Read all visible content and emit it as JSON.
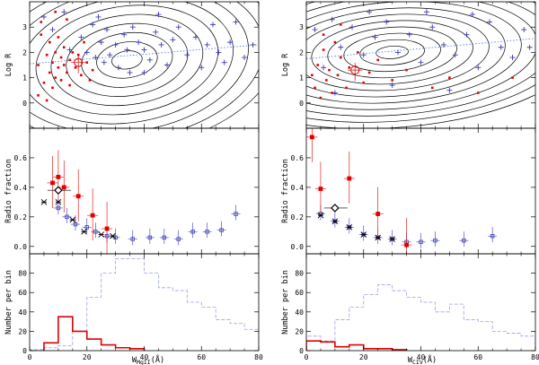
{
  "figure": {
    "colors": {
      "radio": "#e00000",
      "nonradio": "#3a3ab8",
      "cross": "#000000",
      "contour": "#000000",
      "fit": "#4a6fd8",
      "hist_all": "#9aa0e8",
      "hist_radio": "#e00000"
    },
    "xtick_labels": [
      "0",
      "20",
      "40",
      "60",
      "80"
    ],
    "xlabel_left_main": "W",
    "xlabel_left_sub": "MgII",
    "xlabel_left_tail": "(Å)",
    "xlabel_right_main": "W",
    "xlabel_right_sub": "CIV",
    "xlabel_right_tail": "(Å)"
  },
  "chart_data": [
    {
      "id": "left-top",
      "type": "scatter",
      "title": "",
      "xlabel": "W MgII (Å)",
      "ylabel": "Log R",
      "xlim": [
        0,
        80
      ],
      "ylim": [
        -1,
        4
      ],
      "ytick_labels": [
        "0",
        "1",
        "2",
        "3"
      ],
      "yticks": [
        0,
        1,
        2,
        3
      ],
      "series": [
        {
          "name": "non-radio (crosses)",
          "points": [
            [
              5,
              3.4
            ],
            [
              8,
              2.9
            ],
            [
              12,
              3.6
            ],
            [
              14,
              2.1
            ],
            [
              18,
              2.6
            ],
            [
              20,
              2.0
            ],
            [
              22,
              3.1
            ],
            [
              23,
              1.8
            ],
            [
              25,
              2.4
            ],
            [
              26,
              1.6
            ],
            [
              27,
              2.9
            ],
            [
              28,
              1.9
            ],
            [
              30,
              2.3
            ],
            [
              31,
              1.4
            ],
            [
              33,
              2.7
            ],
            [
              34,
              2.1
            ],
            [
              35,
              1.2
            ],
            [
              36,
              3.0
            ],
            [
              38,
              2.4
            ],
            [
              40,
              2.1
            ],
            [
              42,
              1.7
            ],
            [
              44,
              2.8
            ],
            [
              46,
              2.3
            ],
            [
              48,
              1.5
            ],
            [
              50,
              2.5
            ],
            [
              52,
              3.0
            ],
            [
              55,
              1.9
            ],
            [
              58,
              2.6
            ],
            [
              60,
              1.4
            ],
            [
              62,
              2.3
            ],
            [
              64,
              3.1
            ],
            [
              66,
              2.0
            ],
            [
              68,
              1.6
            ],
            [
              70,
              2.4
            ],
            [
              72,
              3.2
            ],
            [
              75,
              1.8
            ],
            [
              78,
              2.3
            ],
            [
              40,
              1.2
            ],
            [
              24,
              3.4
            ],
            [
              45,
              3.5
            ]
          ]
        },
        {
          "name": "radio (dots)",
          "points": [
            [
              3,
              1.5
            ],
            [
              4,
              3.2
            ],
            [
              5,
              0.8
            ],
            [
              6,
              1.9
            ],
            [
              6,
              0.1
            ],
            [
              7,
              2.4
            ],
            [
              7,
              1.2
            ],
            [
              8,
              1.6
            ],
            [
              8,
              0.6
            ],
            [
              9,
              2.0
            ],
            [
              9,
              1.0
            ],
            [
              10,
              1.4
            ],
            [
              10,
              2.6
            ],
            [
              11,
              1.8
            ],
            [
              11,
              0.9
            ],
            [
              12,
              1.5
            ],
            [
              12,
              2.2
            ],
            [
              13,
              1.2
            ],
            [
              14,
              1.7
            ],
            [
              14,
              0.7
            ],
            [
              15,
              2.0
            ],
            [
              16,
              1.4
            ],
            [
              17,
              1.9
            ],
            [
              18,
              1.1
            ],
            [
              19,
              2.4
            ],
            [
              20,
              1.6
            ],
            [
              21,
              0.9
            ],
            [
              22,
              1.3
            ],
            [
              4,
              2.7
            ],
            [
              3,
              0.3
            ],
            [
              13,
              3.3
            ],
            [
              9,
              3.6
            ]
          ]
        },
        {
          "name": "median",
          "points": [
            [
              17,
              1.6
            ]
          ]
        }
      ],
      "fit_line": [
        [
          0,
          1.55
        ],
        [
          80,
          2.3
        ]
      ]
    },
    {
      "id": "right-top",
      "type": "scatter",
      "title": "",
      "xlabel": "W CIV (Å)",
      "ylabel": "Log R",
      "xlim": [
        0,
        80
      ],
      "ylim": [
        -1,
        4
      ],
      "ytick_labels": [
        "0",
        "1",
        "2",
        "3"
      ],
      "yticks": [
        0,
        1,
        2,
        3
      ],
      "series": [
        {
          "name": "non-radio (crosses)",
          "points": [
            [
              3,
              2.9
            ],
            [
              6,
              1.4
            ],
            [
              9,
              3.3
            ],
            [
              12,
              2.2
            ],
            [
              16,
              3.0
            ],
            [
              20,
              1.9
            ],
            [
              24,
              2.6
            ],
            [
              28,
              3.2
            ],
            [
              32,
              2.0
            ],
            [
              36,
              2.7
            ],
            [
              40,
              1.6
            ],
            [
              44,
              3.0
            ],
            [
              48,
              2.3
            ],
            [
              52,
              1.9
            ],
            [
              56,
              2.7
            ],
            [
              60,
              1.4
            ],
            [
              64,
              3.2
            ],
            [
              68,
              2.2
            ],
            [
              72,
              1.8
            ],
            [
              76,
              2.9
            ],
            [
              10,
              0.4
            ],
            [
              30,
              0.7
            ],
            [
              50,
              0.5
            ],
            [
              22,
              3.6
            ],
            [
              42,
              3.6
            ],
            [
              58,
              3.5
            ],
            [
              78,
              2.2
            ]
          ]
        },
        {
          "name": "radio (dots)",
          "points": [
            [
              2,
              1.1
            ],
            [
              3,
              0.6
            ],
            [
              4,
              1.5
            ],
            [
              5,
              0.2
            ],
            [
              6,
              2.1
            ],
            [
              7,
              0.9
            ],
            [
              8,
              1.3
            ],
            [
              9,
              0.4
            ],
            [
              10,
              2.4
            ],
            [
              11,
              1.1
            ],
            [
              12,
              1.8
            ],
            [
              14,
              0.6
            ],
            [
              15,
              1.4
            ],
            [
              18,
              2.0
            ],
            [
              20,
              0.8
            ],
            [
              22,
              1.2
            ],
            [
              25,
              1.7
            ],
            [
              30,
              0.9
            ],
            [
              35,
              1.3
            ],
            [
              44,
              0.6
            ],
            [
              50,
              1.0
            ],
            [
              60,
              0.4
            ],
            [
              72,
              1.0
            ],
            [
              12,
              3.1
            ],
            [
              6,
              2.7
            ]
          ]
        },
        {
          "name": "median",
          "points": [
            [
              17,
              1.3
            ]
          ]
        }
      ],
      "fit_line": [
        [
          0,
          1.75
        ],
        [
          80,
          2.55
        ]
      ]
    },
    {
      "id": "left-mid",
      "type": "scatter",
      "title": "",
      "xlabel": "W MgII (Å)",
      "ylabel": "Radio fraction",
      "xlim": [
        0,
        80
      ],
      "ylim": [
        -0.05,
        0.8
      ],
      "ytick_labels": [
        "0.0",
        "0.2",
        "0.4",
        "0.6"
      ],
      "yticks": [
        0,
        0.2,
        0.4,
        0.6
      ],
      "series": [
        {
          "name": "radio fraction (red squares)",
          "points": [
            [
              8,
              0.43
            ],
            [
              10,
              0.47
            ],
            [
              12,
              0.4
            ],
            [
              17,
              0.34
            ],
            [
              22,
              0.21
            ],
            [
              27,
              0.12
            ]
          ]
        },
        {
          "name": "blue squares",
          "points": [
            [
              10,
              0.26
            ],
            [
              13,
              0.2
            ],
            [
              16,
              0.15
            ],
            [
              20,
              0.13
            ],
            [
              23,
              0.1
            ],
            [
              27,
              0.07
            ],
            [
              30,
              0.06
            ],
            [
              36,
              0.05
            ],
            [
              42,
              0.06
            ],
            [
              47,
              0.06
            ],
            [
              52,
              0.05
            ],
            [
              57,
              0.1
            ],
            [
              62,
              0.1
            ],
            [
              67,
              0.11
            ],
            [
              72,
              0.22
            ]
          ]
        },
        {
          "name": "crosses",
          "points": [
            [
              5,
              0.3
            ],
            [
              10,
              0.3
            ],
            [
              15,
              0.18
            ],
            [
              19,
              0.1
            ],
            [
              25,
              0.08
            ],
            [
              29,
              0.07
            ]
          ]
        },
        {
          "name": "median diamond",
          "points": [
            [
              10,
              0.38
            ]
          ]
        }
      ]
    },
    {
      "id": "right-mid",
      "type": "scatter",
      "title": "",
      "xlabel": "W CIV (Å)",
      "ylabel": "Radio fraction",
      "xlim": [
        0,
        80
      ],
      "ylim": [
        -0.05,
        0.8
      ],
      "ytick_labels": [
        "0.0",
        "0.2",
        "0.4",
        "0.6"
      ],
      "yticks": [
        0,
        0.2,
        0.4,
        0.6
      ],
      "series": [
        {
          "name": "radio fraction (red squares)",
          "points": [
            [
              2,
              0.74
            ],
            [
              5,
              0.39
            ],
            [
              15,
              0.46
            ],
            [
              25,
              0.22
            ],
            [
              35,
              0.01
            ]
          ]
        },
        {
          "name": "blue squares",
          "points": [
            [
              5,
              0.22
            ],
            [
              10,
              0.17
            ],
            [
              15,
              0.13
            ],
            [
              20,
              0.08
            ],
            [
              25,
              0.06
            ],
            [
              30,
              0.05
            ],
            [
              35,
              0.03
            ],
            [
              40,
              0.03
            ],
            [
              45,
              0.04
            ],
            [
              55,
              0.04
            ],
            [
              65,
              0.07
            ]
          ]
        },
        {
          "name": "crosses",
          "points": [
            [
              5,
              0.21
            ],
            [
              10,
              0.17
            ],
            [
              15,
              0.13
            ],
            [
              20,
              0.08
            ],
            [
              25,
              0.06
            ],
            [
              30,
              0.05
            ]
          ]
        },
        {
          "name": "median diamond",
          "points": [
            [
              10,
              0.26
            ]
          ]
        }
      ]
    },
    {
      "id": "left-bot",
      "type": "histogram",
      "title": "",
      "xlabel": "W MgII (Å)",
      "ylabel": "Number per bin",
      "xlim": [
        0,
        80
      ],
      "ylim": [
        0,
        100
      ],
      "ytick_labels": [
        "0",
        "20",
        "40",
        "60",
        "80"
      ],
      "yticks": [
        0,
        20,
        40,
        60,
        80
      ],
      "bin_width": 5,
      "series": [
        {
          "name": "all (dashed)",
          "bins": [
            [
              0,
              1
            ],
            [
              5,
              3
            ],
            [
              10,
              5
            ],
            [
              15,
              20
            ],
            [
              20,
              55
            ],
            [
              25,
              80
            ],
            [
              30,
              95
            ],
            [
              35,
              95
            ],
            [
              40,
              80
            ],
            [
              45,
              65
            ],
            [
              50,
              62
            ],
            [
              55,
              50
            ],
            [
              60,
              45
            ],
            [
              65,
              32
            ],
            [
              70,
              28
            ],
            [
              75,
              22
            ]
          ]
        },
        {
          "name": "radio (solid)",
          "bins": [
            [
              5,
              8
            ],
            [
              10,
              35
            ],
            [
              15,
              20
            ],
            [
              20,
              12
            ],
            [
              25,
              6
            ],
            [
              30,
              3
            ],
            [
              35,
              2
            ]
          ]
        }
      ]
    },
    {
      "id": "right-bot",
      "type": "histogram",
      "title": "",
      "xlabel": "W CIV (Å)",
      "ylabel": "Number per bin",
      "xlim": [
        0,
        80
      ],
      "ylim": [
        0,
        100
      ],
      "ytick_labels": [
        "0",
        "20",
        "40",
        "60",
        "80"
      ],
      "yticks": [
        0,
        20,
        40,
        60,
        80
      ],
      "bin_width": 5,
      "series": [
        {
          "name": "all (dashed)",
          "bins": [
            [
              0,
              15
            ],
            [
              5,
              10
            ],
            [
              10,
              32
            ],
            [
              15,
              45
            ],
            [
              20,
              58
            ],
            [
              25,
              68
            ],
            [
              30,
              62
            ],
            [
              35,
              55
            ],
            [
              40,
              50
            ],
            [
              45,
              40
            ],
            [
              50,
              48
            ],
            [
              55,
              32
            ],
            [
              60,
              30
            ],
            [
              65,
              20
            ],
            [
              70,
              18
            ],
            [
              75,
              15
            ]
          ]
        },
        {
          "name": "radio (solid)",
          "bins": [
            [
              0,
              10
            ],
            [
              5,
              9
            ],
            [
              10,
              4
            ],
            [
              15,
              6
            ],
            [
              20,
              2
            ],
            [
              25,
              2
            ],
            [
              30,
              1
            ]
          ]
        }
      ]
    }
  ]
}
